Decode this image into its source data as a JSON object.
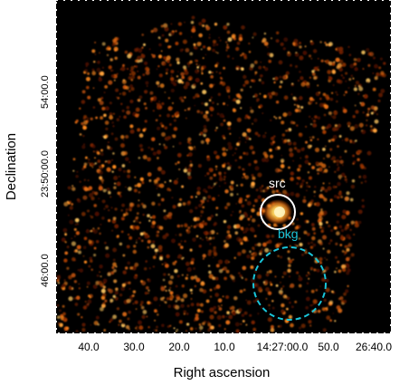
{
  "image": {
    "description_type": "X-ray sky image with source and background regions",
    "colormap": "black-to-orange heat",
    "background_color": "#000000",
    "emission_color": "#ff8a1e"
  },
  "axes": {
    "xlabel": "Right ascension",
    "ylabel": "Declination",
    "xticks": [
      "40.0",
      "30.0",
      "20.0",
      "10.0",
      "14:27:00.0",
      "50.0",
      "26:40.0"
    ],
    "yticks": [
      "54:00.0",
      "23:50:00.0",
      "46:00.0"
    ]
  },
  "regions": {
    "source": {
      "label": "src",
      "shape": "circle",
      "line_style": "solid",
      "color": "#ffffff"
    },
    "background": {
      "label": "bkg",
      "shape": "circle",
      "line_style": "dashed",
      "color": "#19c5d9"
    }
  }
}
